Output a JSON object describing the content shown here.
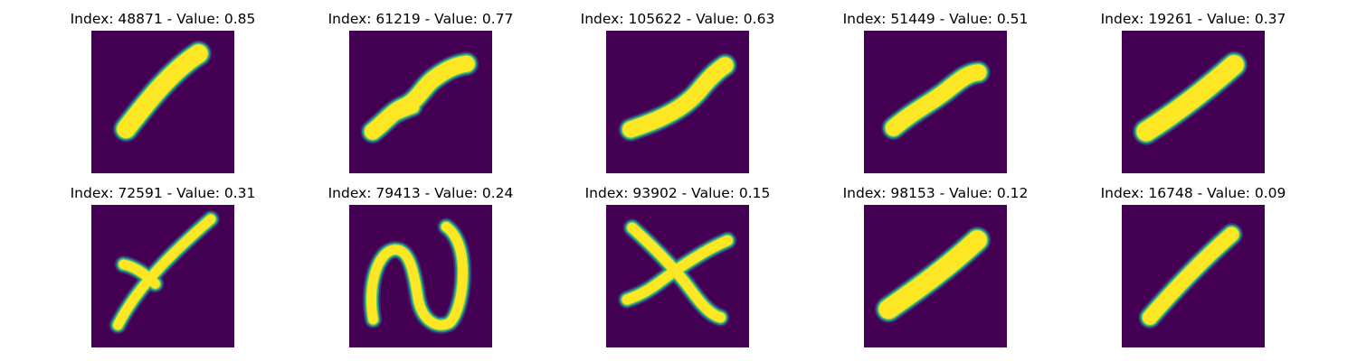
{
  "colors": {
    "background": "#440154",
    "stroke_core": "#fde725",
    "stroke_mid": "#5ec962",
    "stroke_edge": "#21918c",
    "stroke_outer": "#3b528b"
  },
  "panels": [
    {
      "title": "Index: 48871 - Value: 0.85"
    },
    {
      "title": "Index: 61219 - Value: 0.77"
    },
    {
      "title": "Index: 105622 - Value: 0.63"
    },
    {
      "title": "Index: 51449 - Value: 0.51"
    },
    {
      "title": "Index: 19261 - Value: 0.37"
    },
    {
      "title": "Index: 72591 - Value: 0.31"
    },
    {
      "title": "Index: 79413 - Value: 0.24"
    },
    {
      "title": "Index: 93902 - Value: 0.15"
    },
    {
      "title": "Index: 98153 - Value: 0.12"
    },
    {
      "title": "Index: 16748 - Value: 0.09"
    }
  ]
}
